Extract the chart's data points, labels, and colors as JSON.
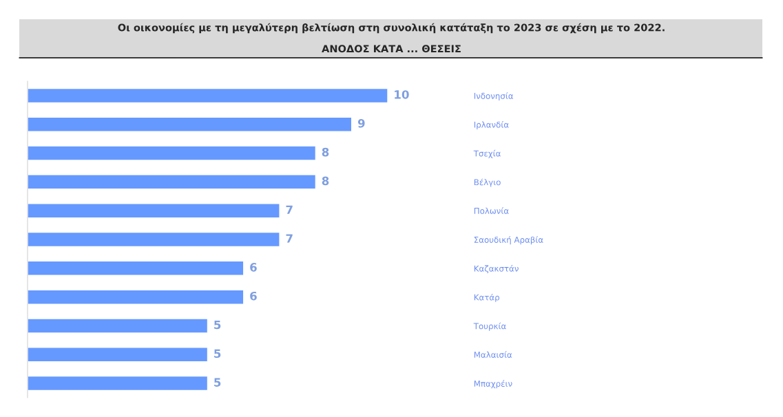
{
  "chart_data": {
    "type": "bar",
    "orientation": "horizontal",
    "title": "Οι οικονομίες με τη μεγαλύτερη βελτίωση στη συνολική κατάταξη το 2023 σε σχέση με το 2022.",
    "subtitle": "ΑΝΟΔΟΣ ΚΑΤΑ ... ΘΕΣΕΙΣ",
    "categories": [
      "Ινδονησία",
      "Ιρλανδία",
      "Τσεχία",
      "Βέλγιο",
      "Πολωνία",
      "Σαουδική Αραβία",
      "Καζακστάν",
      "Κατάρ",
      "Τουρκία",
      "Μαλαισία",
      "Μπαχρέιν"
    ],
    "values": [
      10,
      9,
      8,
      8,
      7,
      7,
      6,
      6,
      5,
      5,
      5
    ],
    "color": "#6699ff",
    "data_labels": true,
    "grid": false,
    "legend": false
  }
}
